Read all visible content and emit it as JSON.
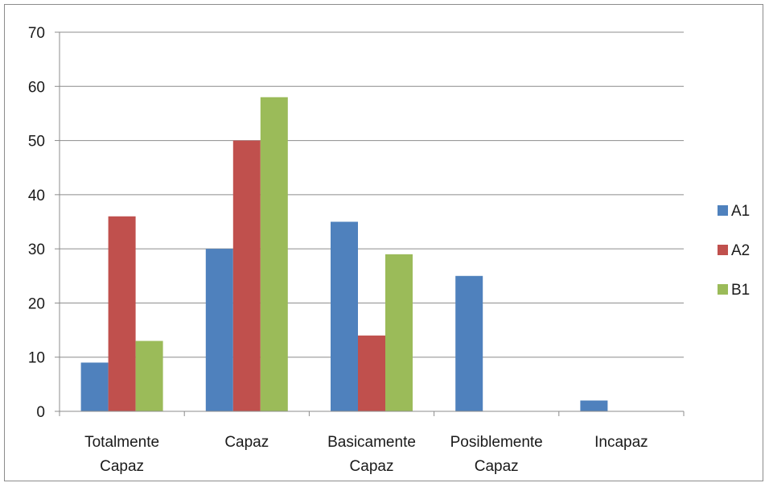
{
  "chart_data": {
    "type": "bar",
    "categories": [
      [
        "Totalmente",
        "Capaz"
      ],
      [
        "Capaz"
      ],
      [
        "Basicamente",
        "Capaz"
      ],
      [
        "Posiblemente",
        "Capaz"
      ],
      [
        "Incapaz"
      ]
    ],
    "series": [
      {
        "name": "A1",
        "color": "#4f81bd",
        "values": [
          9,
          30,
          35,
          25,
          2
        ]
      },
      {
        "name": "A2",
        "color": "#c0504d",
        "values": [
          36,
          50,
          14,
          0,
          0
        ]
      },
      {
        "name": "B1",
        "color": "#9bbb59",
        "values": [
          13,
          58,
          29,
          0,
          0
        ]
      }
    ],
    "ylim": [
      0,
      70
    ],
    "yticks": [
      0,
      10,
      20,
      30,
      40,
      50,
      60,
      70
    ],
    "grid": true,
    "legend_position": "right"
  }
}
